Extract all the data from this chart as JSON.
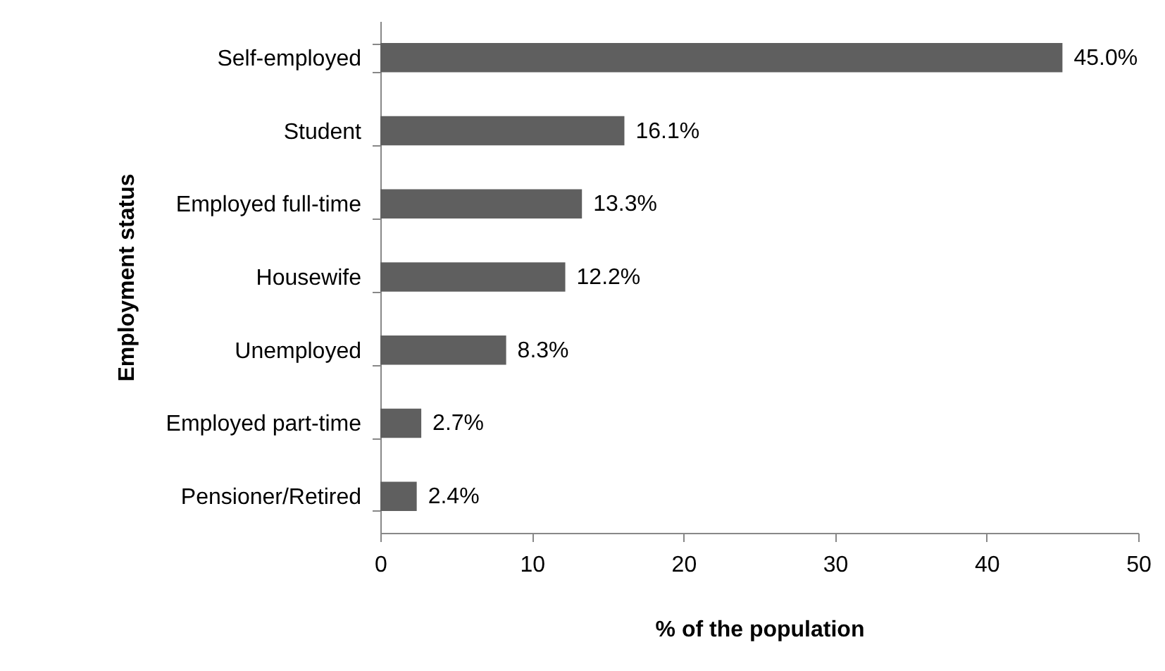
{
  "chart_data": {
    "type": "bar",
    "orientation": "horizontal",
    "categories": [
      "Self-employed",
      "Student",
      "Employed full-time",
      "Housewife",
      "Unemployed",
      "Employed part-time",
      "Pensioner/Retired"
    ],
    "values": [
      45.0,
      16.1,
      13.3,
      12.2,
      8.3,
      2.7,
      2.4
    ],
    "value_labels": [
      "45.0%",
      "16.1%",
      "13.3%",
      "12.2%",
      "8.3%",
      "2.7%",
      "2.4%"
    ],
    "color": "#5f5f5f",
    "xlim": [
      0,
      50
    ],
    "xticks": [
      0,
      10,
      20,
      30,
      40,
      50
    ],
    "xlabel": "% of the population",
    "ylabel": "Employment status",
    "grid": false
  }
}
